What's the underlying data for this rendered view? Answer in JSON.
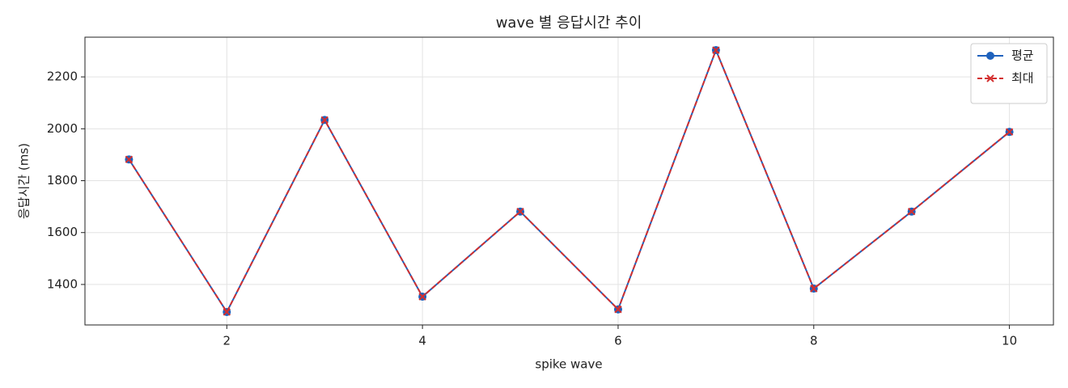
{
  "chart_data": {
    "type": "line",
    "title": "wave 별 응답시간 추이",
    "x_label": "spike wave",
    "y_label": "응답시간 (ms)",
    "x": [
      1,
      2,
      3,
      4,
      5,
      6,
      7,
      8,
      9,
      10
    ],
    "series": [
      {
        "name": "평균",
        "color": "#1f62bd",
        "marker": "circle",
        "dash": "solid",
        "values": [
          1882,
          1294,
          2034,
          1353,
          1681,
          1304,
          2303,
          1384,
          1681,
          1988
        ]
      },
      {
        "name": "최대",
        "color": "#d32f2f",
        "marker": "x",
        "dash": "dashed",
        "values": [
          1882,
          1294,
          2034,
          1353,
          1681,
          1304,
          2303,
          1384,
          1681,
          1988
        ]
      }
    ],
    "xlim": [
      0.55,
      10.45
    ],
    "ylim": [
      1244,
      2353
    ],
    "xticks": [
      2,
      4,
      6,
      8,
      10
    ],
    "yticks": [
      1400,
      1600,
      1800,
      2000,
      2200
    ],
    "grid": true,
    "legend": "upper-right"
  }
}
